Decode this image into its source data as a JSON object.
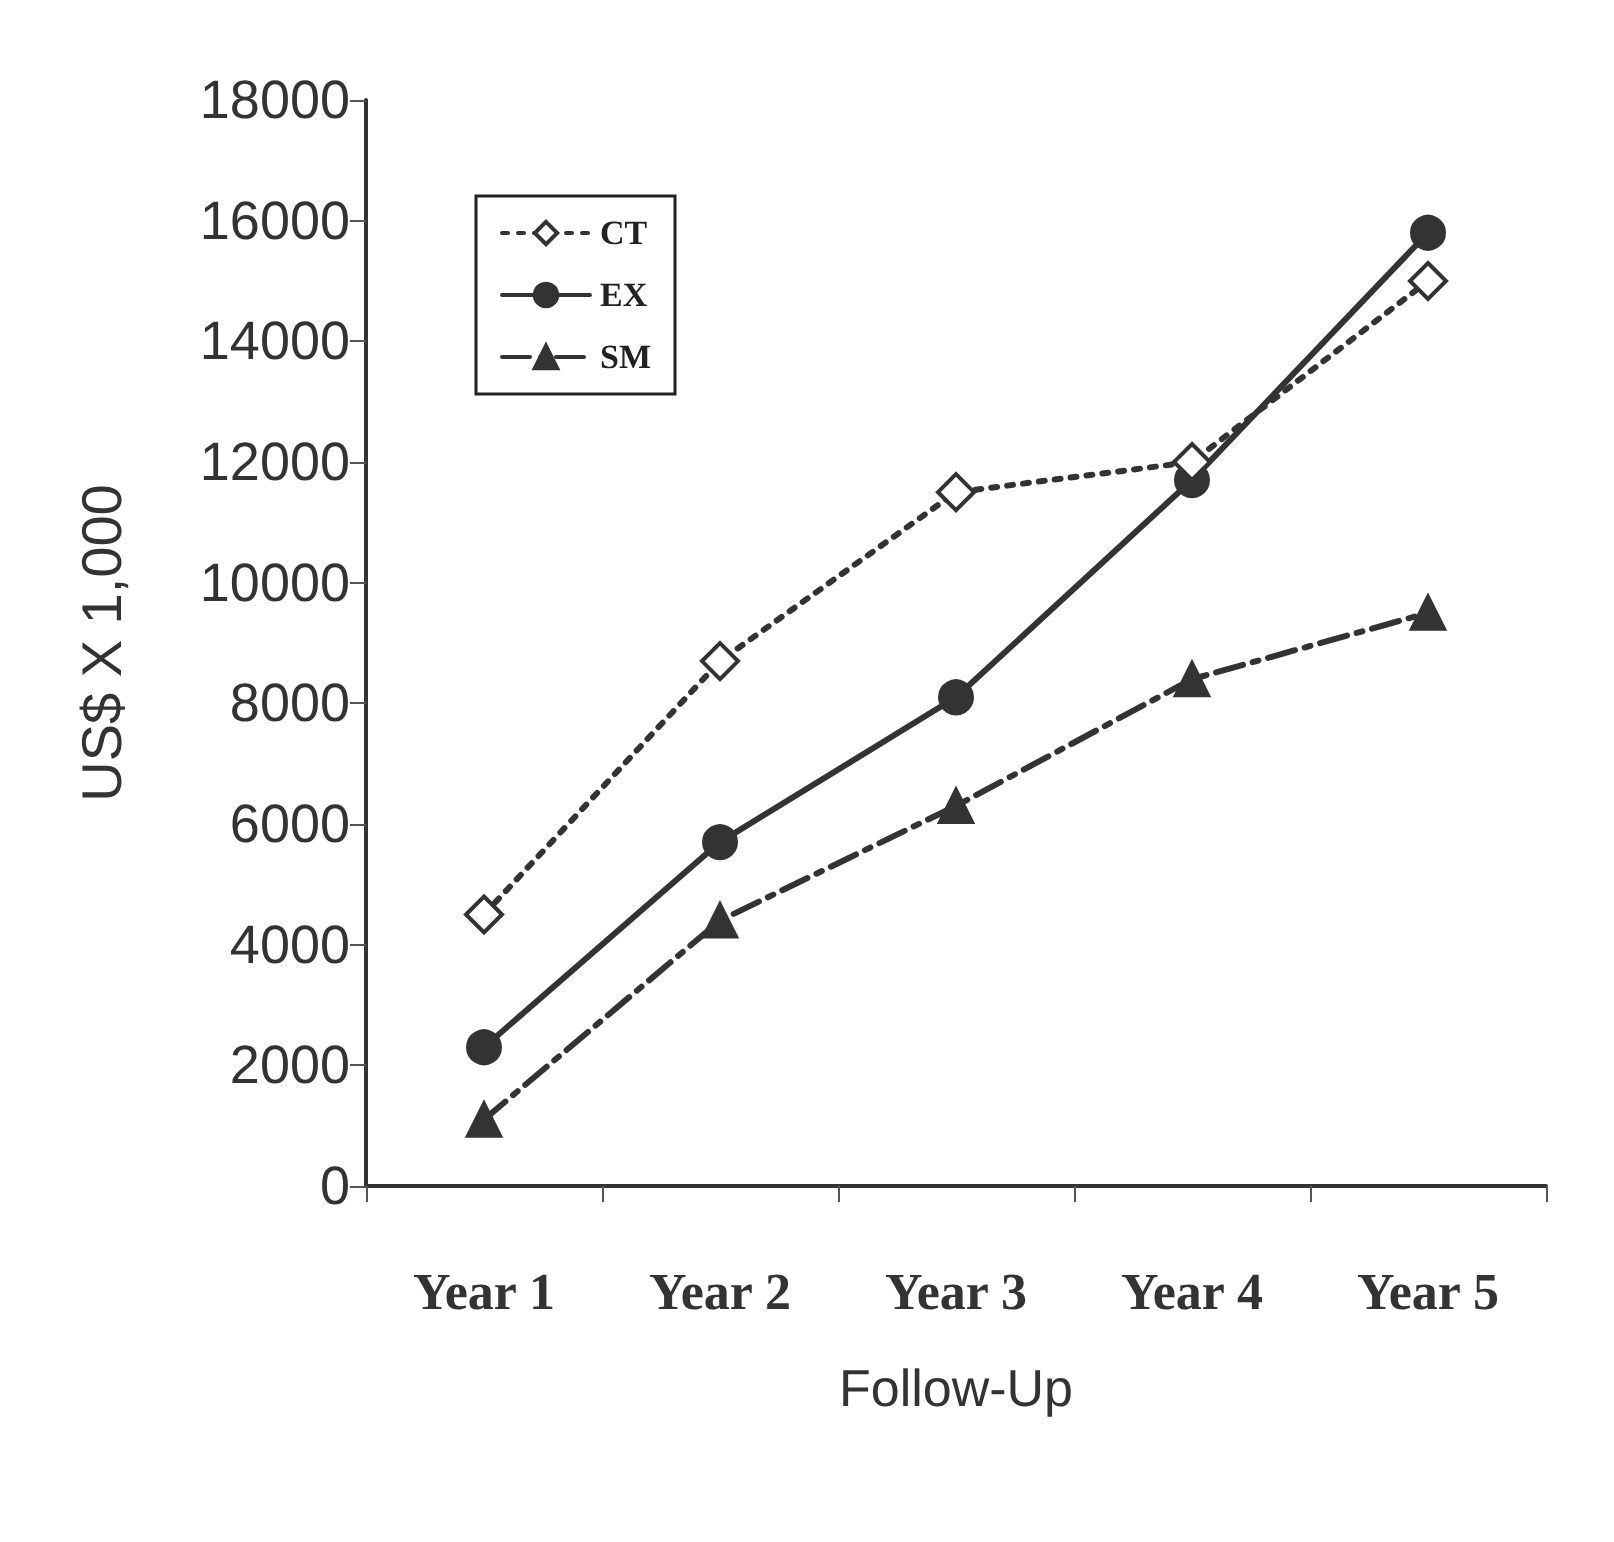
{
  "chart_data": {
    "type": "line",
    "xlabel": "Follow-Up",
    "ylabel": "US$ X 1,000",
    "categories": [
      "Year 1",
      "Year 2",
      "Year 3",
      "Year 4",
      "Year 5"
    ],
    "series": [
      {
        "name": "CT",
        "color": "#333333",
        "values": [
          4500,
          8700,
          11500,
          12000,
          15000
        ],
        "marker": "diamond",
        "line_style": "dotted"
      },
      {
        "name": "EX",
        "color": "#333333",
        "values": [
          2300,
          5700,
          8100,
          11700,
          15800
        ],
        "marker": "circle",
        "line_style": "solid"
      },
      {
        "name": "SM",
        "color": "#333333",
        "values": [
          1100,
          4400,
          6300,
          8400,
          9500
        ],
        "marker": "triangle",
        "line_style": "dashed"
      }
    ],
    "ylim": [
      0,
      18000
    ],
    "yticks": [
      0,
      2000,
      4000,
      6000,
      8000,
      10000,
      12000,
      14000,
      16000,
      18000
    ],
    "grid": false,
    "legend": "top left"
  }
}
